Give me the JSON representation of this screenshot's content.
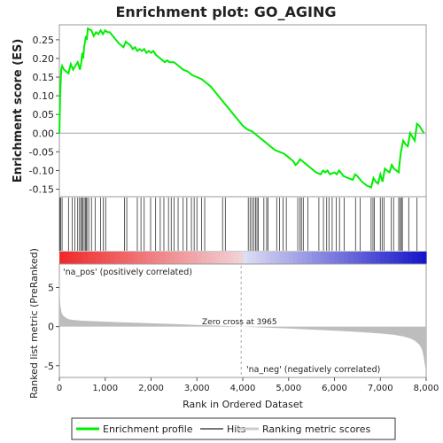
{
  "chart_data": {
    "type": "line",
    "title": "Enrichment plot: GO_AGING",
    "x_axis": {
      "label": "Rank in Ordered Dataset",
      "range": [
        0,
        8000
      ],
      "ticks": [
        0,
        1000,
        2000,
        3000,
        4000,
        5000,
        6000,
        7000,
        8000
      ],
      "tick_labels": [
        "0",
        "1,000",
        "2,000",
        "3,000",
        "4,000",
        "5,000",
        "6,000",
        "7,000",
        "8,000"
      ]
    },
    "enrichment_panel": {
      "ylabel": "Enrichment score (ES)",
      "ylim": [
        -0.17,
        0.29
      ],
      "yticks": [
        -0.15,
        -0.1,
        -0.05,
        0.0,
        0.05,
        0.1,
        0.15,
        0.2,
        0.25
      ],
      "ytick_labels": [
        "-0.15",
        "-0.10",
        "-0.05",
        "0.00",
        "0.05",
        "0.10",
        "0.15",
        "0.20",
        "0.25"
      ],
      "color": "#00ee00",
      "series": {
        "name": "Enrichment profile",
        "x": [
          0,
          20,
          40,
          60,
          100,
          200,
          250,
          300,
          350,
          400,
          450,
          480,
          500,
          520,
          540,
          560,
          580,
          600,
          620,
          700,
          750,
          800,
          850,
          900,
          950,
          1000,
          1050,
          1100,
          1200,
          1300,
          1400,
          1450,
          1500,
          1550,
          1600,
          1650,
          1700,
          1750,
          1800,
          1850,
          1900,
          1950,
          2000,
          2050,
          2100,
          2200,
          2300,
          2350,
          2400,
          2500,
          2600,
          2700,
          2800,
          2900,
          3000,
          3100,
          3200,
          3300,
          3400,
          3500,
          3600,
          3700,
          3800,
          3900,
          4000,
          4100,
          4200,
          4300,
          4400,
          4500,
          4600,
          4700,
          4800,
          4900,
          5000,
          5100,
          5150,
          5200,
          5250,
          5300,
          5350,
          5400,
          5500,
          5600,
          5700,
          5750,
          5800,
          5850,
          5900,
          6000,
          6050,
          6100,
          6200,
          6300,
          6400,
          6450,
          6500,
          6600,
          6700,
          6800,
          6850,
          6900,
          6950,
          7000,
          7050,
          7100,
          7150,
          7200,
          7250,
          7300,
          7350,
          7400,
          7420,
          7450,
          7500,
          7550,
          7600,
          7650,
          7700,
          7750,
          7800,
          7850,
          7900,
          7950
        ],
        "y": [
          0.0,
          0.11,
          0.17,
          0.18,
          0.17,
          0.16,
          0.185,
          0.17,
          0.18,
          0.19,
          0.17,
          0.19,
          0.215,
          0.2,
          0.23,
          0.245,
          0.26,
          0.25,
          0.28,
          0.275,
          0.26,
          0.27,
          0.265,
          0.275,
          0.265,
          0.275,
          0.27,
          0.27,
          0.255,
          0.24,
          0.23,
          0.245,
          0.24,
          0.235,
          0.225,
          0.23,
          0.22,
          0.225,
          0.22,
          0.225,
          0.215,
          0.22,
          0.215,
          0.22,
          0.21,
          0.2,
          0.19,
          0.195,
          0.19,
          0.19,
          0.18,
          0.17,
          0.165,
          0.155,
          0.15,
          0.145,
          0.135,
          0.125,
          0.11,
          0.095,
          0.08,
          0.065,
          0.05,
          0.035,
          0.02,
          0.01,
          0.005,
          -0.005,
          -0.015,
          -0.025,
          -0.035,
          -0.045,
          -0.05,
          -0.055,
          -0.065,
          -0.075,
          -0.085,
          -0.08,
          -0.07,
          -0.075,
          -0.08,
          -0.085,
          -0.095,
          -0.105,
          -0.11,
          -0.1,
          -0.105,
          -0.1,
          -0.11,
          -0.105,
          -0.11,
          -0.1,
          -0.115,
          -0.12,
          -0.125,
          -0.11,
          -0.115,
          -0.13,
          -0.14,
          -0.145,
          -0.12,
          -0.13,
          -0.135,
          -0.11,
          -0.13,
          -0.095,
          -0.1,
          -0.105,
          -0.085,
          -0.095,
          -0.1,
          -0.105,
          -0.08,
          -0.05,
          -0.02,
          -0.03,
          -0.035,
          0.0,
          -0.01,
          -0.02,
          0.025,
          0.02,
          0.01,
          0.0
        ]
      }
    },
    "hits": {
      "name": "Hits",
      "positions": [
        10,
        30,
        60,
        200,
        280,
        340,
        400,
        440,
        470,
        500,
        520,
        560,
        580,
        600,
        640,
        700,
        780,
        900,
        960,
        1010,
        1420,
        1470,
        1700,
        1780,
        1850,
        1990,
        2100,
        2200,
        2280,
        2380,
        2440,
        2500,
        2590,
        2700,
        2780,
        2880,
        2940,
        3000,
        3100,
        3170,
        3560,
        3620,
        4120,
        4160,
        4200,
        4240,
        4280,
        4310,
        4340,
        4460,
        4520,
        4550,
        4740,
        4800,
        4880,
        4950,
        5200,
        5250,
        5280,
        5320,
        5420,
        5660,
        5760,
        5830,
        5880,
        5950,
        6040,
        6110,
        6210,
        6460,
        6560,
        6800,
        6840,
        6870,
        7000,
        7040,
        7080,
        7240,
        7290,
        7400,
        7430,
        7460,
        7480,
        7620,
        7800
      ]
    },
    "ranked_metric": {
      "ylabel": "Ranked list metric (PreRanked)",
      "ylim": [
        -6.5,
        8
      ],
      "yticks": [
        -5,
        0,
        5
      ],
      "ytick_labels": [
        "-5",
        "0",
        "5"
      ],
      "label_pos": "'na_pos' (positively correlated)",
      "label_neg": "'na_neg' (negatively correlated)",
      "zero_cross_text": "Zero cross at 3965",
      "zero_cross": 3965,
      "x": [
        0,
        5,
        10,
        20,
        40,
        60,
        100,
        150,
        200,
        300,
        500,
        800,
        1000,
        1500,
        2000,
        2500,
        3000,
        3500,
        3965,
        4500,
        5000,
        5500,
        6000,
        6500,
        7000,
        7300,
        7500,
        7650,
        7750,
        7850,
        7900,
        7930,
        7960,
        7980,
        8000
      ],
      "y": [
        7.5,
        5.5,
        4.0,
        2.8,
        2.0,
        1.6,
        1.3,
        1.1,
        0.95,
        0.85,
        0.75,
        0.68,
        0.62,
        0.52,
        0.42,
        0.32,
        0.22,
        0.12,
        0.0,
        -0.12,
        -0.25,
        -0.38,
        -0.52,
        -0.68,
        -0.88,
        -1.05,
        -1.25,
        -1.5,
        -1.8,
        -2.3,
        -2.8,
        -3.4,
        -4.4,
        -5.2,
        -6.0
      ]
    },
    "legend": {
      "items": [
        "Enrichment profile",
        "Hits",
        "Ranking metric scores"
      ],
      "placement": "bottom"
    }
  }
}
